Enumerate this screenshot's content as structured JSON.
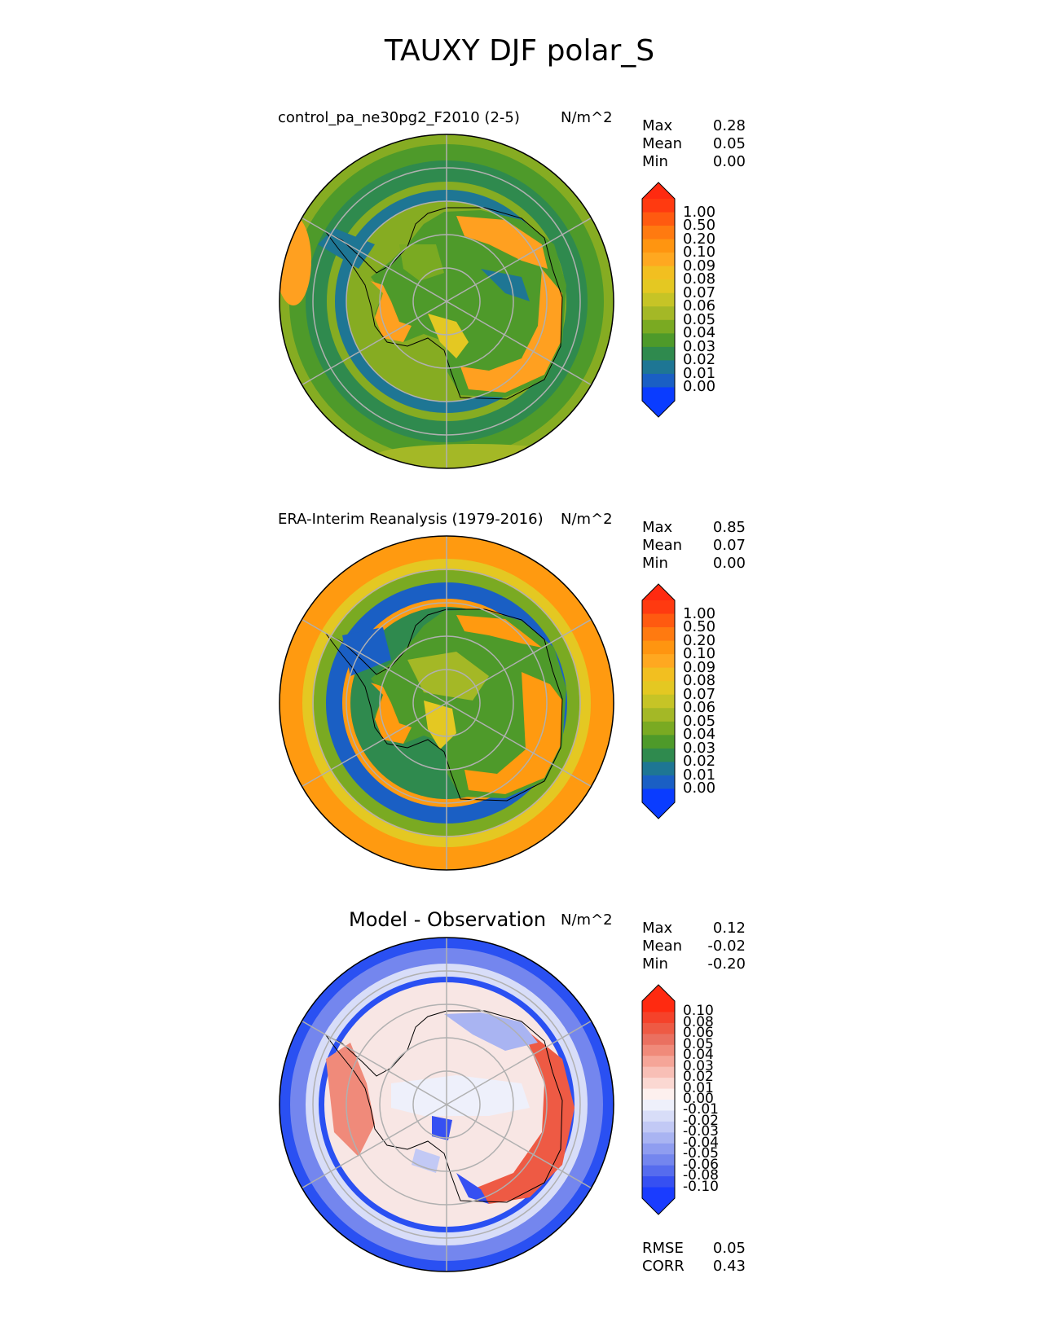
{
  "title": "TAUXY DJF polar_S",
  "panels": [
    {
      "name": "test",
      "title": "control_pa_ne30pg2_F2010 (2-5)",
      "units": "N/m^2",
      "stats": [
        {
          "label": "Max",
          "value": "0.28"
        },
        {
          "label": "Mean",
          "value": "0.05"
        },
        {
          "label": "Min",
          "value": "0.00"
        }
      ],
      "colorbar": {
        "levels": [
          "1.00",
          "0.50",
          "0.20",
          "0.10",
          "0.09",
          "0.08",
          "0.07",
          "0.06",
          "0.05",
          "0.04",
          "0.03",
          "0.02",
          "0.01",
          "0.00"
        ],
        "colors": [
          "#ff3a10",
          "#ff5a10",
          "#ff7a10",
          "#ff9510",
          "#ffa820",
          "#f2bf20",
          "#e4c822",
          "#c6c426",
          "#a4b826",
          "#7aaa22",
          "#4e9a2a",
          "#2f8a4e",
          "#1e7694",
          "#1a5fc4",
          "#0a3cff"
        ],
        "over_color": "#ff2a10",
        "under_color": "#0a3cff"
      }
    },
    {
      "name": "reference",
      "title": "ERA-Interim Reanalysis (1979-2016)",
      "units": "N/m^2",
      "stats": [
        {
          "label": "Max",
          "value": "0.85"
        },
        {
          "label": "Mean",
          "value": "0.07"
        },
        {
          "label": "Min",
          "value": "0.00"
        }
      ],
      "colorbar": {
        "levels": [
          "1.00",
          "0.50",
          "0.20",
          "0.10",
          "0.09",
          "0.08",
          "0.07",
          "0.06",
          "0.05",
          "0.04",
          "0.03",
          "0.02",
          "0.01",
          "0.00"
        ],
        "colors": [
          "#ff3a10",
          "#ff5a10",
          "#ff7a10",
          "#ff9510",
          "#ffa820",
          "#f2bf20",
          "#e4c822",
          "#c6c426",
          "#a4b826",
          "#7aaa22",
          "#4e9a2a",
          "#2f8a4e",
          "#1e7694",
          "#1a5fc4",
          "#0a3cff"
        ],
        "over_color": "#ff2a10",
        "under_color": "#0a3cff"
      }
    },
    {
      "name": "difference",
      "title": "Model - Observation",
      "units": "N/m^2",
      "stats": [
        {
          "label": "Max",
          "value": "0.12"
        },
        {
          "label": "Mean",
          "value": "-0.02"
        },
        {
          "label": "Min",
          "value": "-0.20"
        }
      ],
      "colorbar": {
        "levels": [
          "0.10",
          "0.08",
          "0.06",
          "0.05",
          "0.04",
          "0.03",
          "0.02",
          "0.01",
          "0.00",
          "-0.01",
          "-0.02",
          "-0.03",
          "-0.04",
          "-0.05",
          "-0.06",
          "-0.08",
          "-0.10"
        ],
        "colors": [
          "#ff2a10",
          "#f5422a",
          "#ee5a44",
          "#ea7060",
          "#f08a7a",
          "#f5a598",
          "#f8bfb6",
          "#fbd8d2",
          "#fdf0ee",
          "#eef0fb",
          "#d8ddf8",
          "#c2c9f5",
          "#a9b4f2",
          "#8f9df0",
          "#7486ee",
          "#566cee",
          "#3650f2",
          "#1a3cff"
        ],
        "over_color": "#ff2a10",
        "under_color": "#1a3cff"
      },
      "extra_stats": [
        {
          "label": "RMSE",
          "value": "0.05"
        },
        {
          "label": "CORR",
          "value": "0.43"
        }
      ]
    }
  ],
  "chart_data": [
    {
      "type": "heatmap",
      "projection": "south polar stereographic",
      "title": "control_pa_ne30pg2_F2010 (2-5)",
      "units": "N/m^2",
      "levels": [
        0.0,
        0.01,
        0.02,
        0.03,
        0.04,
        0.05,
        0.06,
        0.07,
        0.08,
        0.09,
        0.1,
        0.2,
        0.5,
        1.0
      ],
      "stats": {
        "max": 0.28,
        "mean": 0.05,
        "min": 0.0
      }
    },
    {
      "type": "heatmap",
      "projection": "south polar stereographic",
      "title": "ERA-Interim Reanalysis (1979-2016)",
      "units": "N/m^2",
      "levels": [
        0.0,
        0.01,
        0.02,
        0.03,
        0.04,
        0.05,
        0.06,
        0.07,
        0.08,
        0.09,
        0.1,
        0.2,
        0.5,
        1.0
      ],
      "stats": {
        "max": 0.85,
        "mean": 0.07,
        "min": 0.0
      }
    },
    {
      "type": "heatmap",
      "projection": "south polar stereographic",
      "title": "Model - Observation",
      "units": "N/m^2",
      "levels": [
        -0.1,
        -0.08,
        -0.06,
        -0.05,
        -0.04,
        -0.03,
        -0.02,
        -0.01,
        0.0,
        0.01,
        0.02,
        0.03,
        0.04,
        0.05,
        0.06,
        0.08,
        0.1
      ],
      "stats": {
        "max": 0.12,
        "mean": -0.02,
        "min": -0.2,
        "rmse": 0.05,
        "corr": 0.43
      }
    }
  ]
}
